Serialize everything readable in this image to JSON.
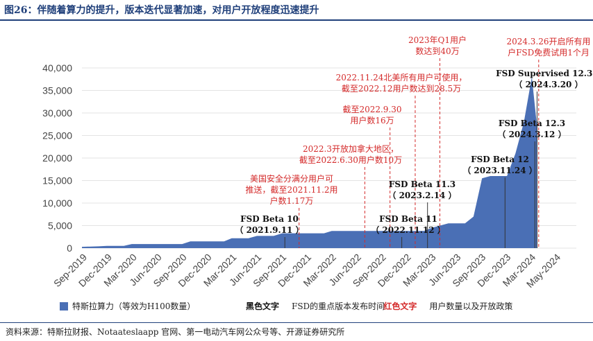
{
  "title": "图26：伴随着算力的提升，版本迭代显著加速，对用户开放程度迅速提升",
  "source": "资料来源：特斯拉财报、Notaateslaapp 官网、第一电动汽车网公众号等、开源证券研究所",
  "colors": {
    "area": "#4a6fb5",
    "title": "#1f3f7a",
    "red": "#d42a2a",
    "black": "#111111"
  },
  "chart_data": {
    "type": "area",
    "ylim": [
      0,
      40000
    ],
    "yticks": [
      "0",
      "5,000",
      "10,000",
      "15,000",
      "20,000",
      "25,000",
      "30,000",
      "35,000",
      "40,000"
    ],
    "xticks": [
      "Sep-2019",
      "Dec-2019",
      "Mar-2020",
      "Jun-2020",
      "Sep-2020",
      "Dec-2020",
      "Mar-2021",
      "Jun-2021",
      "Sep-2021",
      "Dec-2021",
      "Mar-2022",
      "Jun-2022",
      "Sep-2022",
      "Dec-2022",
      "Mar-2023",
      "Jun-2023",
      "Sep-2023",
      "Dec-2023",
      "Mar-2024",
      "May-2024"
    ],
    "series": [
      {
        "name": "特斯拉算力（等效为H100数量）",
        "points": [
          [
            "2019-09",
            300
          ],
          [
            "2019-11",
            400
          ],
          [
            "2019-12",
            500
          ],
          [
            "2020-01",
            500
          ],
          [
            "2020-02",
            500
          ],
          [
            "2020-03",
            900
          ],
          [
            "2020-06",
            900
          ],
          [
            "2020-09",
            900
          ],
          [
            "2020-10",
            1500
          ],
          [
            "2020-12",
            1500
          ],
          [
            "2021-02",
            1500
          ],
          [
            "2021-03",
            2200
          ],
          [
            "2021-05",
            2200
          ],
          [
            "2021-06",
            2700
          ],
          [
            "2021-08",
            2700
          ],
          [
            "2021-09",
            3300
          ],
          [
            "2021-12",
            3300
          ],
          [
            "2022-02",
            3300
          ],
          [
            "2022-03",
            3800
          ],
          [
            "2022-06",
            3800
          ],
          [
            "2022-09",
            3800
          ],
          [
            "2022-12",
            3800
          ],
          [
            "2023-02",
            3800
          ],
          [
            "2023-03",
            4500
          ],
          [
            "2023-05",
            5500
          ],
          [
            "2023-07",
            5500
          ],
          [
            "2023-08",
            7000
          ],
          [
            "2023-09",
            15500
          ],
          [
            "2023-10",
            16000
          ],
          [
            "2023-12",
            16000
          ],
          [
            "2024-01",
            21000
          ],
          [
            "2024-02",
            28000
          ],
          [
            "2024-03",
            38000
          ],
          [
            "2024-03-20",
            27000
          ]
        ]
      }
    ],
    "legend": [
      {
        "text": "特斯拉算力（等效为H100数量）",
        "kind": "swatch"
      },
      {
        "text": "黑色文字",
        "kind": "black-bold"
      },
      {
        "text": "FSD的重点版本发布时间",
        "kind": "plain"
      },
      {
        "text": "红色文字",
        "kind": "red-bold"
      },
      {
        "text": "用户数量以及开放政策",
        "kind": "plain"
      }
    ],
    "annotations": [
      {
        "date": "2021-09-11",
        "color": "black",
        "lines": [
          "FSD Beta 10",
          "（ 2021.9.11 ）"
        ]
      },
      {
        "date": "2021-11-02",
        "color": "red",
        "lines": [
          "美国安全分满分用户可",
          "推送，截至2021.11.2用",
          "户数1.17万"
        ]
      },
      {
        "date": "2022-06-30",
        "color": "red",
        "lines": [
          "2022.3开放加拿大地区，",
          "截至2022.6.30用户数10万"
        ]
      },
      {
        "date": "2022-09-30",
        "color": "red",
        "lines": [
          "截至2022.9.30",
          "用户数16万"
        ]
      },
      {
        "date": "2022-11-12",
        "color": "black",
        "lines": [
          "FSD Beta 11",
          "（ 2022.11.12 ）"
        ]
      },
      {
        "date": "2022-12-31",
        "color": "red",
        "lines": [
          "2022.11.24北美所有用户可使用，",
          "截至2022.12用户数达到28.5万"
        ]
      },
      {
        "date": "2023-02-14",
        "color": "black",
        "lines": [
          "FSD Beta 11.3",
          "（ 2023.2.14 ）"
        ]
      },
      {
        "date": "2023-03-31",
        "color": "red",
        "lines": [
          "2023年Q1用户",
          "数达到40万"
        ]
      },
      {
        "date": "2023-11-24",
        "color": "black",
        "lines": [
          "FSD Beta 12",
          "（ 2023.11.24 ）"
        ]
      },
      {
        "date": "2024-03-12",
        "color": "black",
        "lines": [
          "FSD Beta 12.3",
          "（ 2024.3.12 ）"
        ]
      },
      {
        "date": "2024-03-20",
        "color": "black",
        "lines": [
          "FSD Supervised 12.3.3",
          "（ 2024.3.20 ）"
        ]
      },
      {
        "date": "2024-03-26",
        "color": "red",
        "lines": [
          "2024.3.26开启所有用",
          "户FSD免费试用1个月"
        ]
      }
    ]
  }
}
